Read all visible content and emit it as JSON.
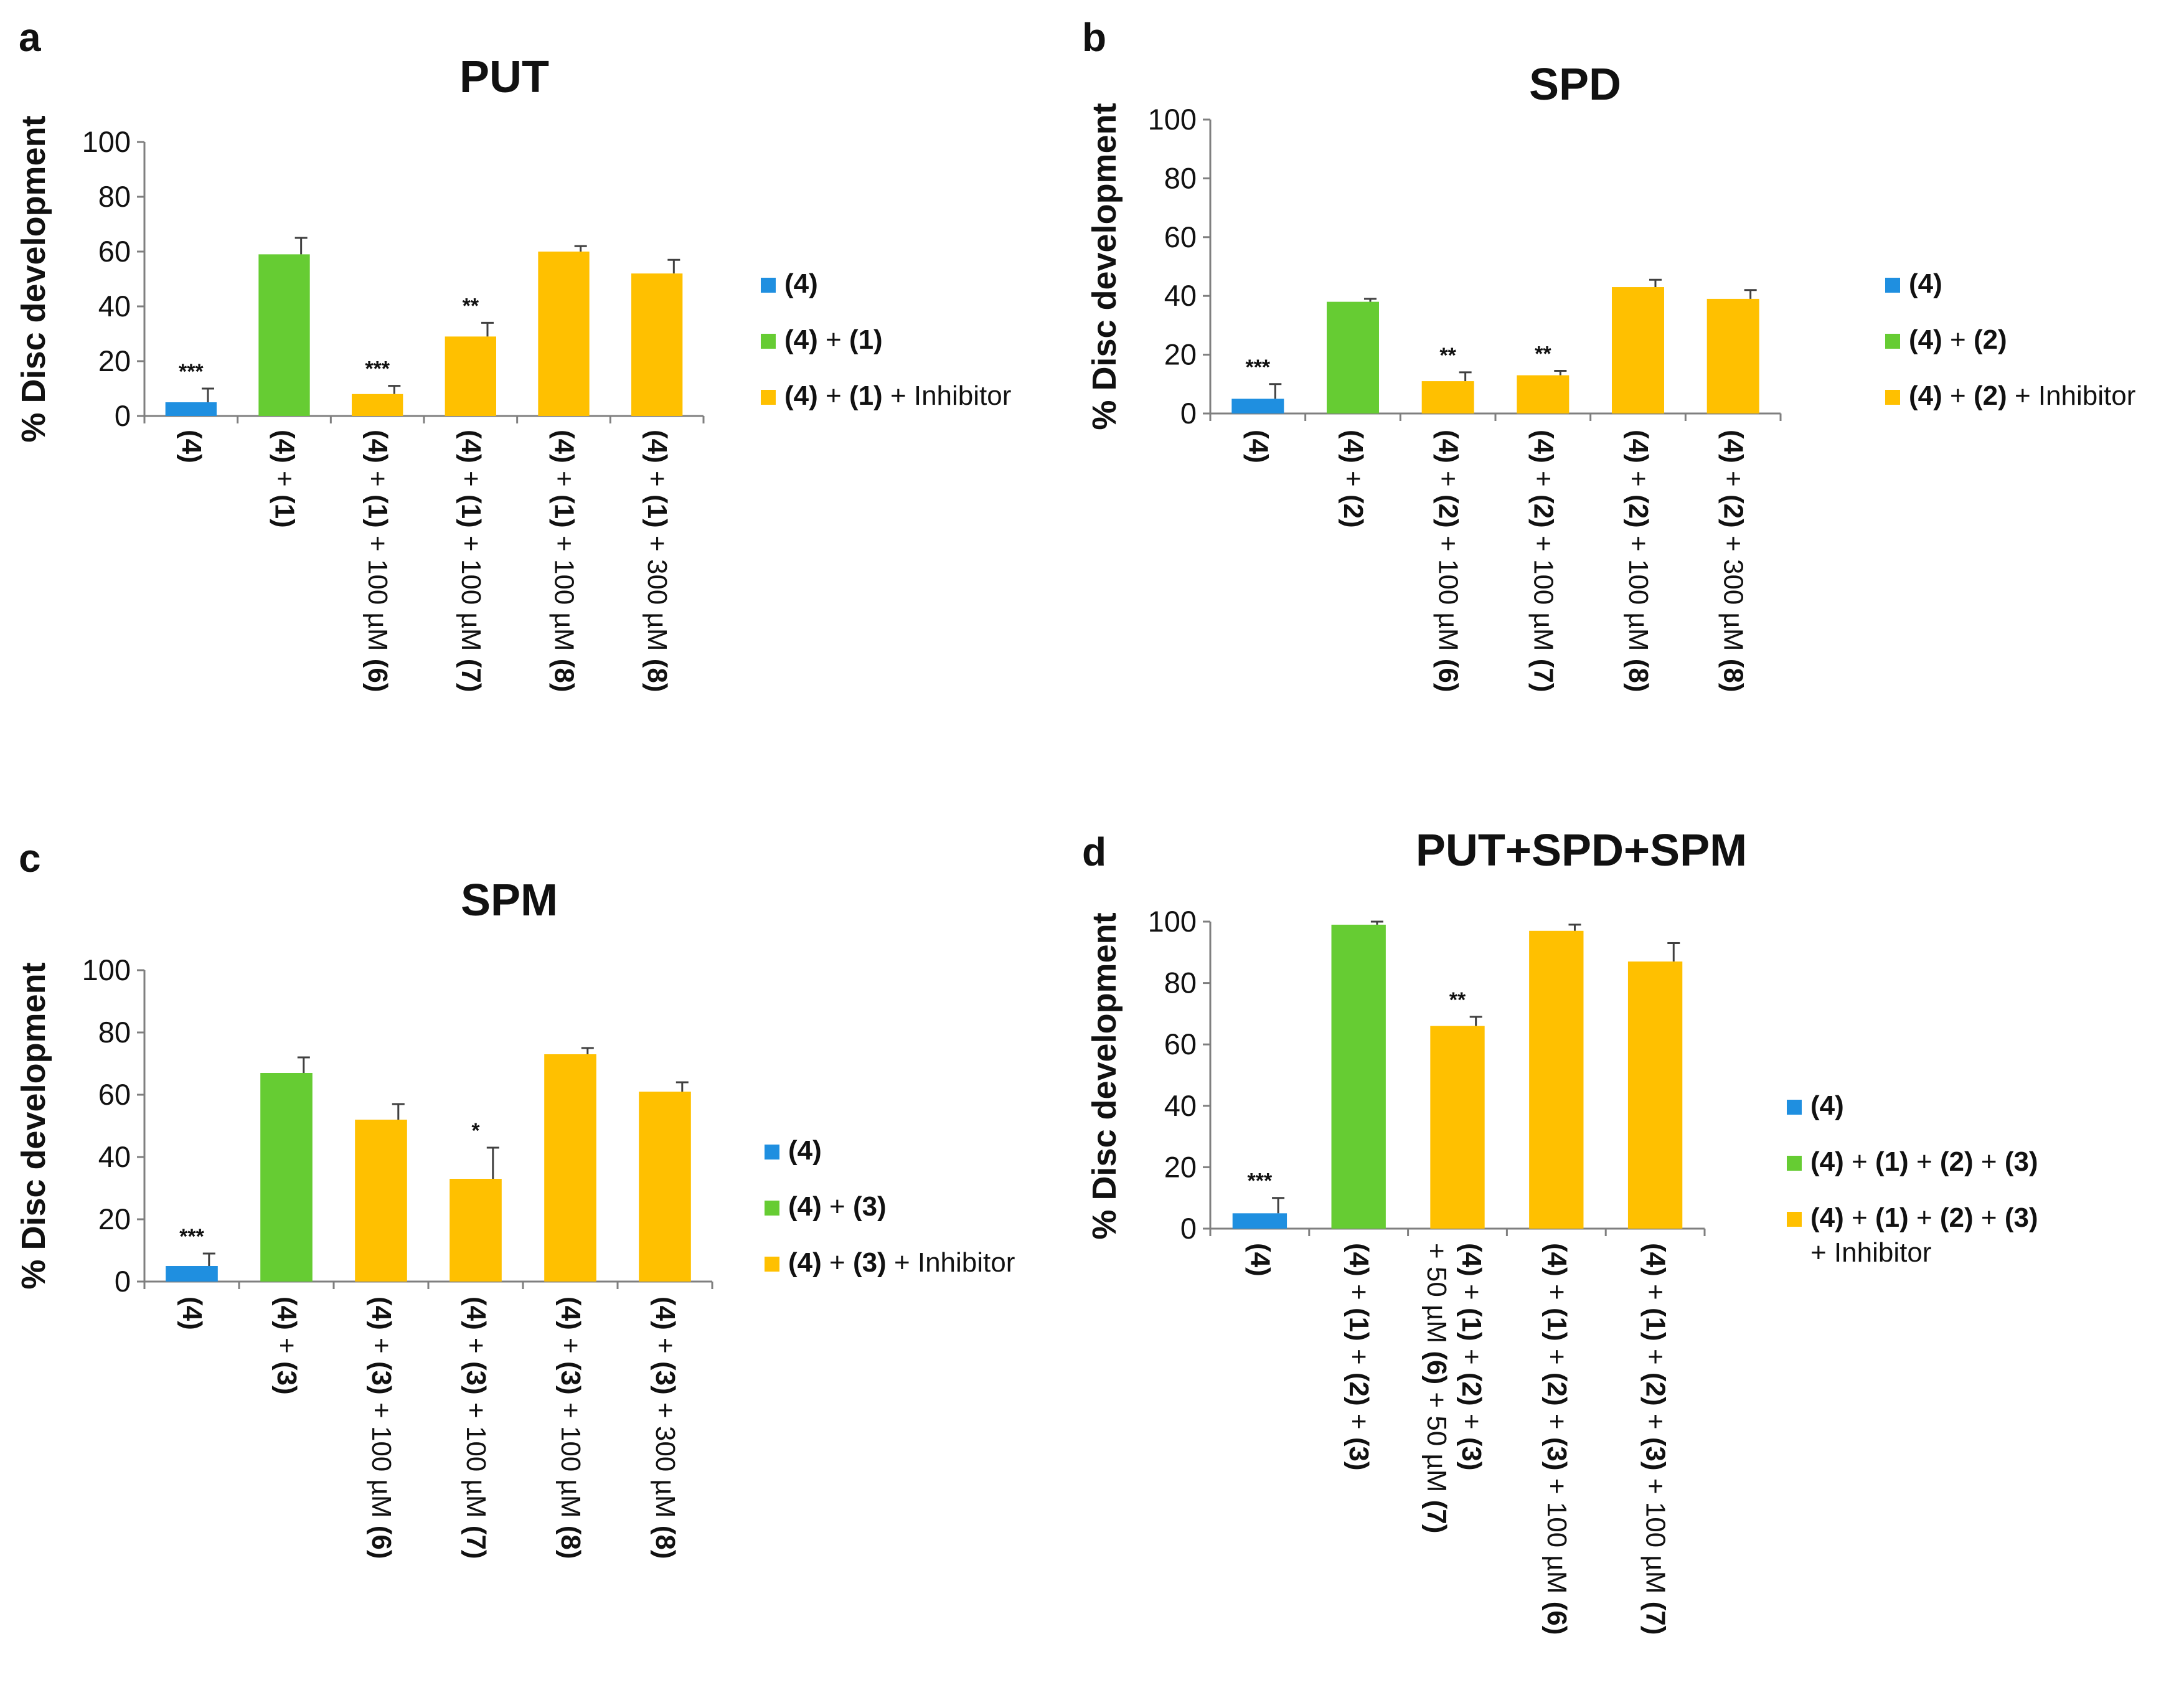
{
  "figure": {
    "colors": {
      "blue": "#1f8fe0",
      "green": "#66cc33",
      "orange": "#ffc000"
    }
  },
  "chart_data": [
    {
      "type": "bar",
      "panel": "a",
      "title": "PUT",
      "ylabel": "% Disc development",
      "ylim": [
        0,
        100
      ],
      "yticks": [
        0,
        20,
        40,
        60,
        80,
        100
      ],
      "categories": [
        "(4)",
        "(4) + (1)",
        "(4) + (1) + 100 µM (6)",
        "(4) + (1) + 100 µM (7)",
        "(4) + (1) + 100 µM (8)",
        "(4) + (1) + 300 µM (8)"
      ],
      "values": [
        5,
        59,
        8,
        29,
        60,
        52
      ],
      "errors": [
        5,
        6,
        3,
        5,
        2,
        5
      ],
      "significance": [
        "***",
        "",
        "***",
        "**",
        "",
        ""
      ],
      "bar_groups": [
        "blue",
        "green",
        "orange",
        "orange",
        "orange",
        "orange"
      ],
      "legend": [
        {
          "group": "blue",
          "label": "(4)"
        },
        {
          "group": "green",
          "label": "(4) + (1)"
        },
        {
          "group": "orange",
          "label": "(4) + (1) + Inhibitor"
        }
      ]
    },
    {
      "type": "bar",
      "panel": "b",
      "title": "SPD",
      "ylabel": "% Disc development",
      "ylim": [
        0,
        100
      ],
      "yticks": [
        0,
        20,
        40,
        60,
        80,
        100
      ],
      "categories": [
        "(4)",
        "(4) + (2)",
        "(4) + (2) + 100 µM (6)",
        "(4) + (2) + 100 µM (7)",
        "(4) + (2) + 100 µM (8)",
        "(4) + (2) + 300 µM (8)"
      ],
      "values": [
        5,
        38,
        11,
        13,
        43,
        39
      ],
      "errors": [
        5,
        1,
        3,
        1.5,
        2.5,
        3
      ],
      "significance": [
        "***",
        "",
        "**",
        "**",
        "",
        ""
      ],
      "bar_groups": [
        "blue",
        "green",
        "orange",
        "orange",
        "orange",
        "orange"
      ],
      "legend": [
        {
          "group": "blue",
          "label": "(4)"
        },
        {
          "group": "green",
          "label": "(4) + (2)"
        },
        {
          "group": "orange",
          "label": "(4) + (2) + Inhibitor"
        }
      ]
    },
    {
      "type": "bar",
      "panel": "c",
      "title": "SPM",
      "ylabel": "% Disc development",
      "ylim": [
        0,
        100
      ],
      "yticks": [
        0,
        20,
        40,
        60,
        80,
        100
      ],
      "categories": [
        "(4)",
        "(4) + (3)",
        "(4) + (3) + 100 µM (6)",
        "(4) + (3) + 100 µM (7)",
        "(4) + (3) + 100 µM (8)",
        "(4) + (3) + 300 µM (8)"
      ],
      "values": [
        5,
        67,
        52,
        33,
        73,
        61
      ],
      "errors": [
        4,
        5,
        5,
        10,
        2,
        3
      ],
      "significance": [
        "***",
        "",
        "",
        "*",
        "",
        ""
      ],
      "bar_groups": [
        "blue",
        "green",
        "orange",
        "orange",
        "orange",
        "orange"
      ],
      "legend": [
        {
          "group": "blue",
          "label": "(4)"
        },
        {
          "group": "green",
          "label": "(4) + (3)"
        },
        {
          "group": "orange",
          "label": "(4) + (3) + Inhibitor"
        }
      ]
    },
    {
      "type": "bar",
      "panel": "d",
      "title": "PUT+SPD+SPM",
      "ylabel": "% Disc development",
      "ylim": [
        0,
        100
      ],
      "yticks": [
        0,
        20,
        40,
        60,
        80,
        100
      ],
      "categories": [
        "(4)",
        "(4) + (1) + (2) + (3)",
        "(4) + (1) + (2) + (3) + 50 µM (6) + 50 µM (7)",
        "(4) + (1) + (2) + (3) + 100 µM (6)",
        "(4) + (1) + (2) + (3) + 100 µM (7)"
      ],
      "values": [
        5,
        99,
        66,
        97,
        87
      ],
      "errors": [
        5,
        1,
        3,
        2,
        6
      ],
      "significance": [
        "***",
        "",
        "**",
        "",
        ""
      ],
      "bar_groups": [
        "blue",
        "green",
        "orange",
        "orange",
        "orange"
      ],
      "legend": [
        {
          "group": "blue",
          "label": "(4)"
        },
        {
          "group": "green",
          "label": "(4) + (1) + (2) + (3)"
        },
        {
          "group": "orange",
          "label": "(4) + (1) + (2) + (3) + Inhibitor"
        }
      ]
    }
  ]
}
